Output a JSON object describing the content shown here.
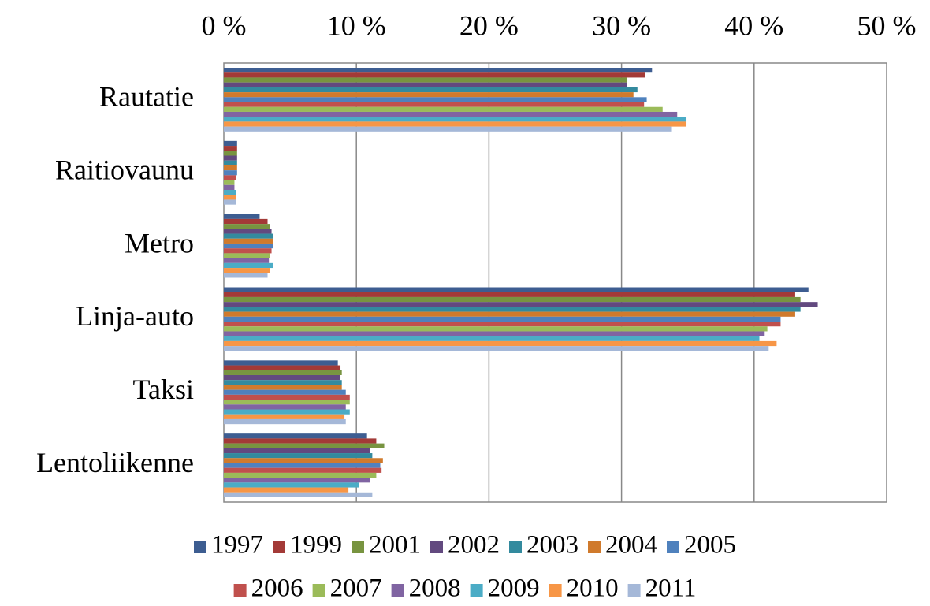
{
  "chart_data": {
    "type": "bar",
    "orientation": "horizontal",
    "categories": [
      "Rautatie",
      "Raitiovaunu",
      "Metro",
      "Linja-auto",
      "Taksi",
      "Lentoliikenne"
    ],
    "series": [
      {
        "name": "1997",
        "color": "#3D5D91",
        "values": [
          32.3,
          1.0,
          2.7,
          44.1,
          8.6,
          10.8
        ]
      },
      {
        "name": "1999",
        "color": "#A33A37",
        "values": [
          31.8,
          1.0,
          3.3,
          43.1,
          8.8,
          11.5
        ]
      },
      {
        "name": "2001",
        "color": "#789440",
        "values": [
          30.4,
          1.0,
          3.5,
          43.5,
          8.9,
          12.1
        ]
      },
      {
        "name": "2002",
        "color": "#62497F",
        "values": [
          30.4,
          1.0,
          3.6,
          44.8,
          8.8,
          11.0
        ]
      },
      {
        "name": "2003",
        "color": "#338A9E",
        "values": [
          31.2,
          1.0,
          3.7,
          43.5,
          8.9,
          11.2
        ]
      },
      {
        "name": "2004",
        "color": "#D07A2C",
        "values": [
          30.9,
          1.0,
          3.7,
          43.1,
          8.9,
          12.0
        ]
      },
      {
        "name": "2005",
        "color": "#4F81BD",
        "values": [
          31.9,
          1.0,
          3.7,
          42.0,
          9.2,
          11.8
        ]
      },
      {
        "name": "2006",
        "color": "#C0504D",
        "values": [
          31.7,
          0.9,
          3.6,
          42.0,
          9.5,
          11.9
        ]
      },
      {
        "name": "2007",
        "color": "#9BBB59",
        "values": [
          33.1,
          0.8,
          3.5,
          41.0,
          9.5,
          11.5
        ]
      },
      {
        "name": "2008",
        "color": "#8064A2",
        "values": [
          34.2,
          0.8,
          3.4,
          40.8,
          9.2,
          11.0
        ]
      },
      {
        "name": "2009",
        "color": "#4BACC6",
        "values": [
          34.9,
          0.9,
          3.7,
          40.4,
          9.5,
          10.2
        ]
      },
      {
        "name": "2010",
        "color": "#F79646",
        "values": [
          34.9,
          0.9,
          3.5,
          41.7,
          9.1,
          9.4
        ]
      },
      {
        "name": "2011",
        "color": "#A5B8D8",
        "values": [
          33.8,
          0.9,
          3.3,
          41.1,
          9.2,
          11.2
        ]
      }
    ],
    "xlim": [
      0,
      50
    ],
    "xticks": [
      {
        "value": 0,
        "label": "0 %"
      },
      {
        "value": 10,
        "label": "10 %"
      },
      {
        "value": 20,
        "label": "20 %"
      },
      {
        "value": 30,
        "label": "30 %"
      },
      {
        "value": 40,
        "label": "40 %"
      },
      {
        "value": 50,
        "label": "50 %"
      }
    ],
    "grid": true
  }
}
